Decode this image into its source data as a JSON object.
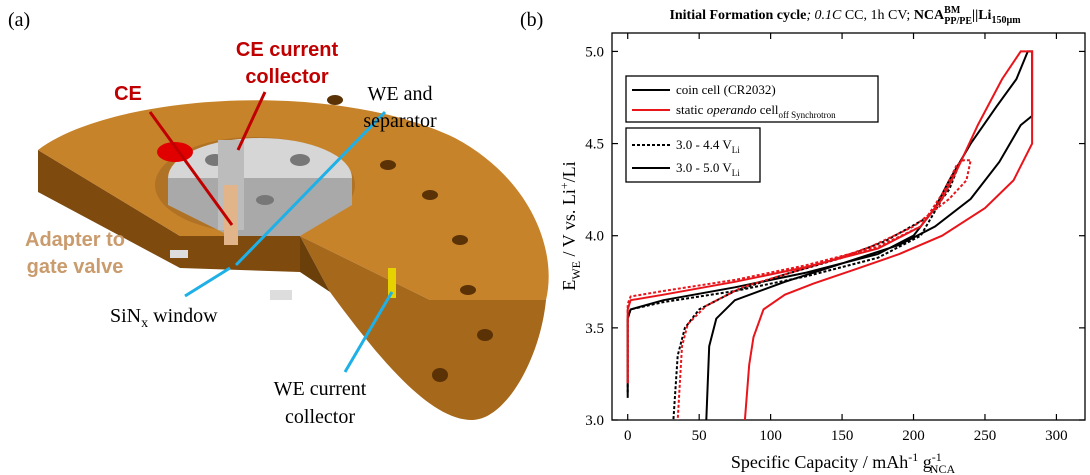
{
  "figure": {
    "panel_labels": [
      "(a)",
      "(b)"
    ],
    "labels": {
      "ce_collector": [
        "CE current",
        "collector"
      ],
      "ce": [
        "CE"
      ],
      "we_separator": [
        "WE and",
        "separator"
      ],
      "adapter": [
        "Adapter to",
        "gate valve"
      ],
      "sinx": [
        "SiN",
        "x",
        " window"
      ],
      "we_collector": [
        "WE current",
        "collector"
      ]
    }
  },
  "chart_data": {
    "type": "line",
    "title": [
      "Initial Formation cycle",
      "; 0.1",
      "C",
      " CC, 1h CV; ",
      "NCA",
      "BM",
      "PP/PE",
      "||Li",
      "150µm"
    ],
    "x_label": [
      "Specific Capacity / mAh",
      "-1",
      " g",
      "-1",
      "NCA"
    ],
    "y_label": [
      "E",
      "WE",
      " / V vs. Li",
      "+",
      "/Li"
    ],
    "xlim": [
      -11,
      320
    ],
    "ylim": [
      3.0,
      5.1
    ],
    "xticks": [
      0,
      50,
      100,
      150,
      200,
      250,
      300
    ],
    "yticks": [
      {
        "value": 3.0,
        "label": "3.0"
      },
      {
        "value": 3.5,
        "label": "3.5"
      },
      {
        "value": 4.0,
        "label": "4.0"
      },
      {
        "value": 4.5,
        "label": "4.5"
      },
      {
        "value": 5.0,
        "label": "5.0"
      }
    ],
    "legend_colors": [
      {
        "text": [
          "coin cell (CR2032)"
        ],
        "color": "#000000"
      },
      {
        "text": [
          "static ",
          "operando",
          " cell",
          "off Synchrotron"
        ],
        "color": "#e8151b"
      }
    ],
    "legend_styles": [
      {
        "text": [
          "3.0 - 4.4 V",
          "Li"
        ],
        "dash": "3,2"
      },
      {
        "text": [
          "3.0 - 5.0 V",
          "Li"
        ],
        "dash": "none"
      }
    ],
    "series": [
      {
        "color": "#000000",
        "dash": "none",
        "x": [
          0,
          0,
          2,
          25,
          75,
          125,
          175,
          200,
          215,
          225,
          240,
          258,
          272,
          280,
          283,
          283,
          275,
          260,
          240,
          215,
          190,
          150,
          110,
          75,
          62,
          57,
          55
        ],
        "y": [
          3.12,
          3.55,
          3.6,
          3.65,
          3.72,
          3.8,
          3.9,
          4.0,
          4.15,
          4.3,
          4.5,
          4.7,
          4.85,
          5.0,
          5.0,
          4.65,
          4.6,
          4.4,
          4.2,
          4.05,
          3.95,
          3.85,
          3.75,
          3.65,
          3.55,
          3.4,
          3.0
        ]
      },
      {
        "color": "#000000",
        "dash": "3,2",
        "x": [
          0,
          0,
          2,
          25,
          75,
          125,
          175,
          205,
          220,
          228,
          230,
          230,
          225,
          210,
          180,
          150,
          110,
          75,
          50,
          40,
          35,
          32
        ],
        "y": [
          3.15,
          3.55,
          3.6,
          3.64,
          3.7,
          3.78,
          3.88,
          4.0,
          4.2,
          4.33,
          4.37,
          4.35,
          4.25,
          4.1,
          3.97,
          3.88,
          3.79,
          3.7,
          3.6,
          3.5,
          3.35,
          3.0
        ]
      },
      {
        "color": "#e8151b",
        "dash": "none",
        "x": [
          0,
          0,
          2,
          25,
          75,
          125,
          175,
          205,
          220,
          230,
          245,
          262,
          275,
          283,
          283,
          270,
          250,
          220,
          190,
          160,
          130,
          110,
          95,
          88,
          85,
          82
        ],
        "y": [
          3.2,
          3.6,
          3.65,
          3.68,
          3.75,
          3.83,
          3.93,
          4.05,
          4.2,
          4.35,
          4.6,
          4.85,
          5.0,
          5.0,
          4.5,
          4.3,
          4.15,
          4.0,
          3.9,
          3.82,
          3.74,
          3.68,
          3.6,
          3.45,
          3.3,
          3.0
        ]
      },
      {
        "color": "#e8151b",
        "dash": "3,2",
        "x": [
          0,
          0,
          2,
          25,
          75,
          125,
          175,
          205,
          222,
          230,
          235,
          240,
          237,
          225,
          200,
          170,
          140,
          110,
          80,
          55,
          42,
          38,
          35
        ],
        "y": [
          3.2,
          3.63,
          3.67,
          3.7,
          3.76,
          3.84,
          3.94,
          4.05,
          4.25,
          4.38,
          4.41,
          4.41,
          4.3,
          4.2,
          4.05,
          3.94,
          3.86,
          3.79,
          3.72,
          3.62,
          3.52,
          3.4,
          3.0
        ]
      }
    ]
  }
}
